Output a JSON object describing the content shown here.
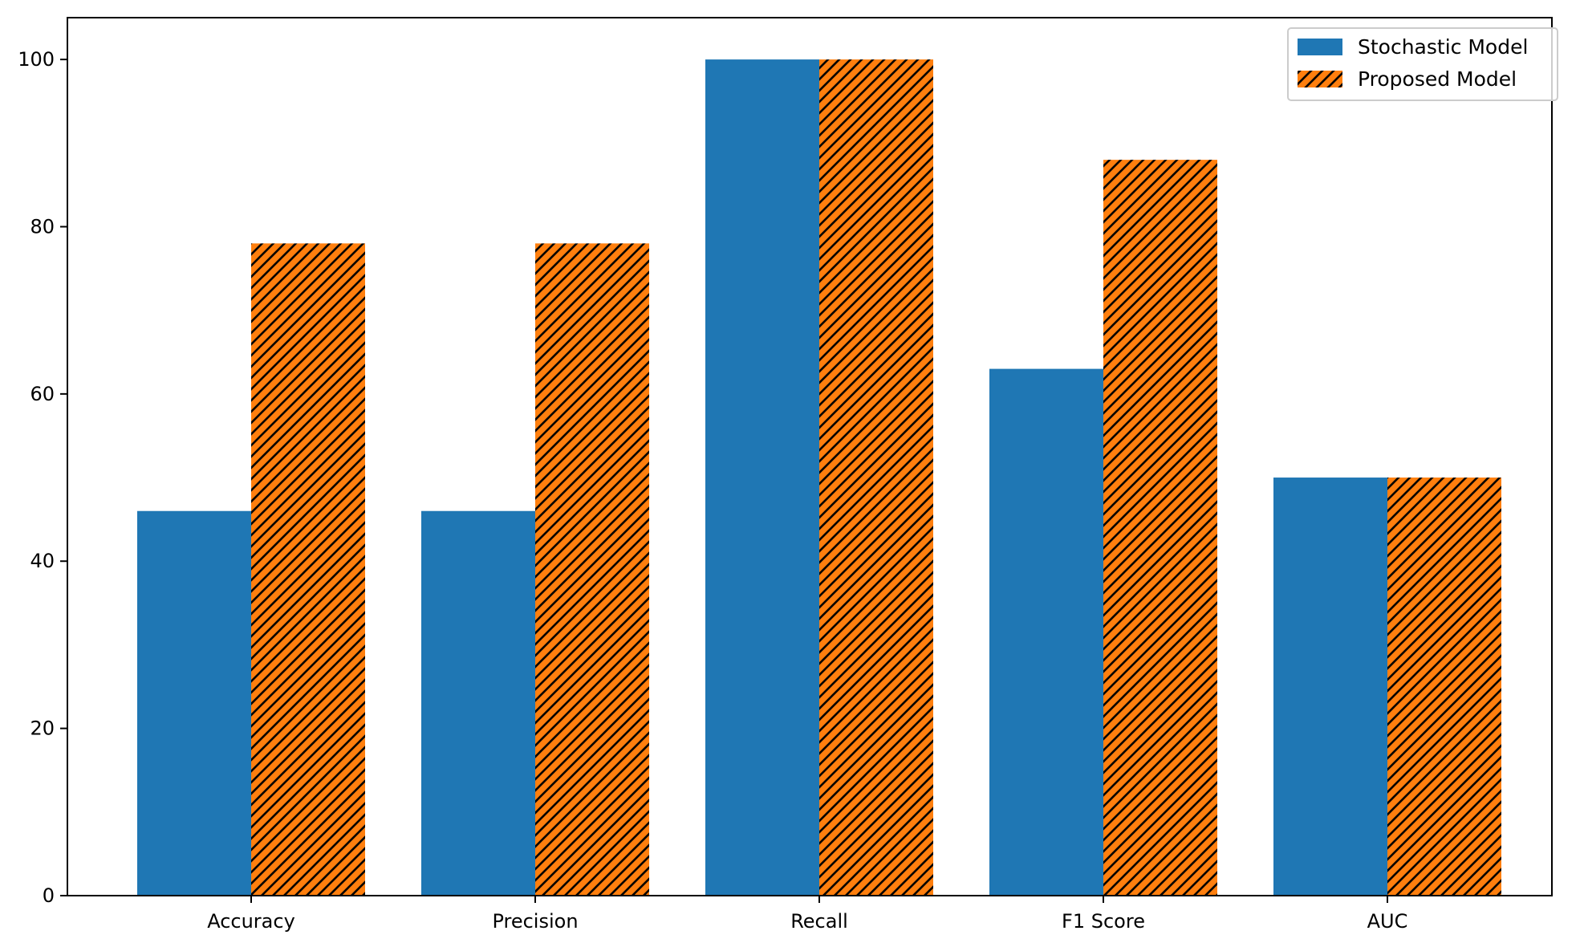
{
  "chart_data": {
    "type": "bar",
    "title": "",
    "xlabel": "",
    "ylabel": "",
    "categories": [
      "Accuracy",
      "Precision",
      "Recall",
      "F1 Score",
      "AUC"
    ],
    "series": [
      {
        "name": "Stochastic Model",
        "values": [
          46,
          46,
          100,
          63,
          50
        ],
        "color": "#1f77b4",
        "hatch": "none"
      },
      {
        "name": "Proposed Model",
        "values": [
          78,
          78,
          100,
          88,
          50
        ],
        "color": "#ff7f0e",
        "hatch": "diagonal"
      }
    ],
    "ylim": [
      0,
      105
    ],
    "yticks": [
      0,
      20,
      40,
      60,
      80,
      100
    ],
    "grid": false,
    "legend_position": "top-right"
  }
}
